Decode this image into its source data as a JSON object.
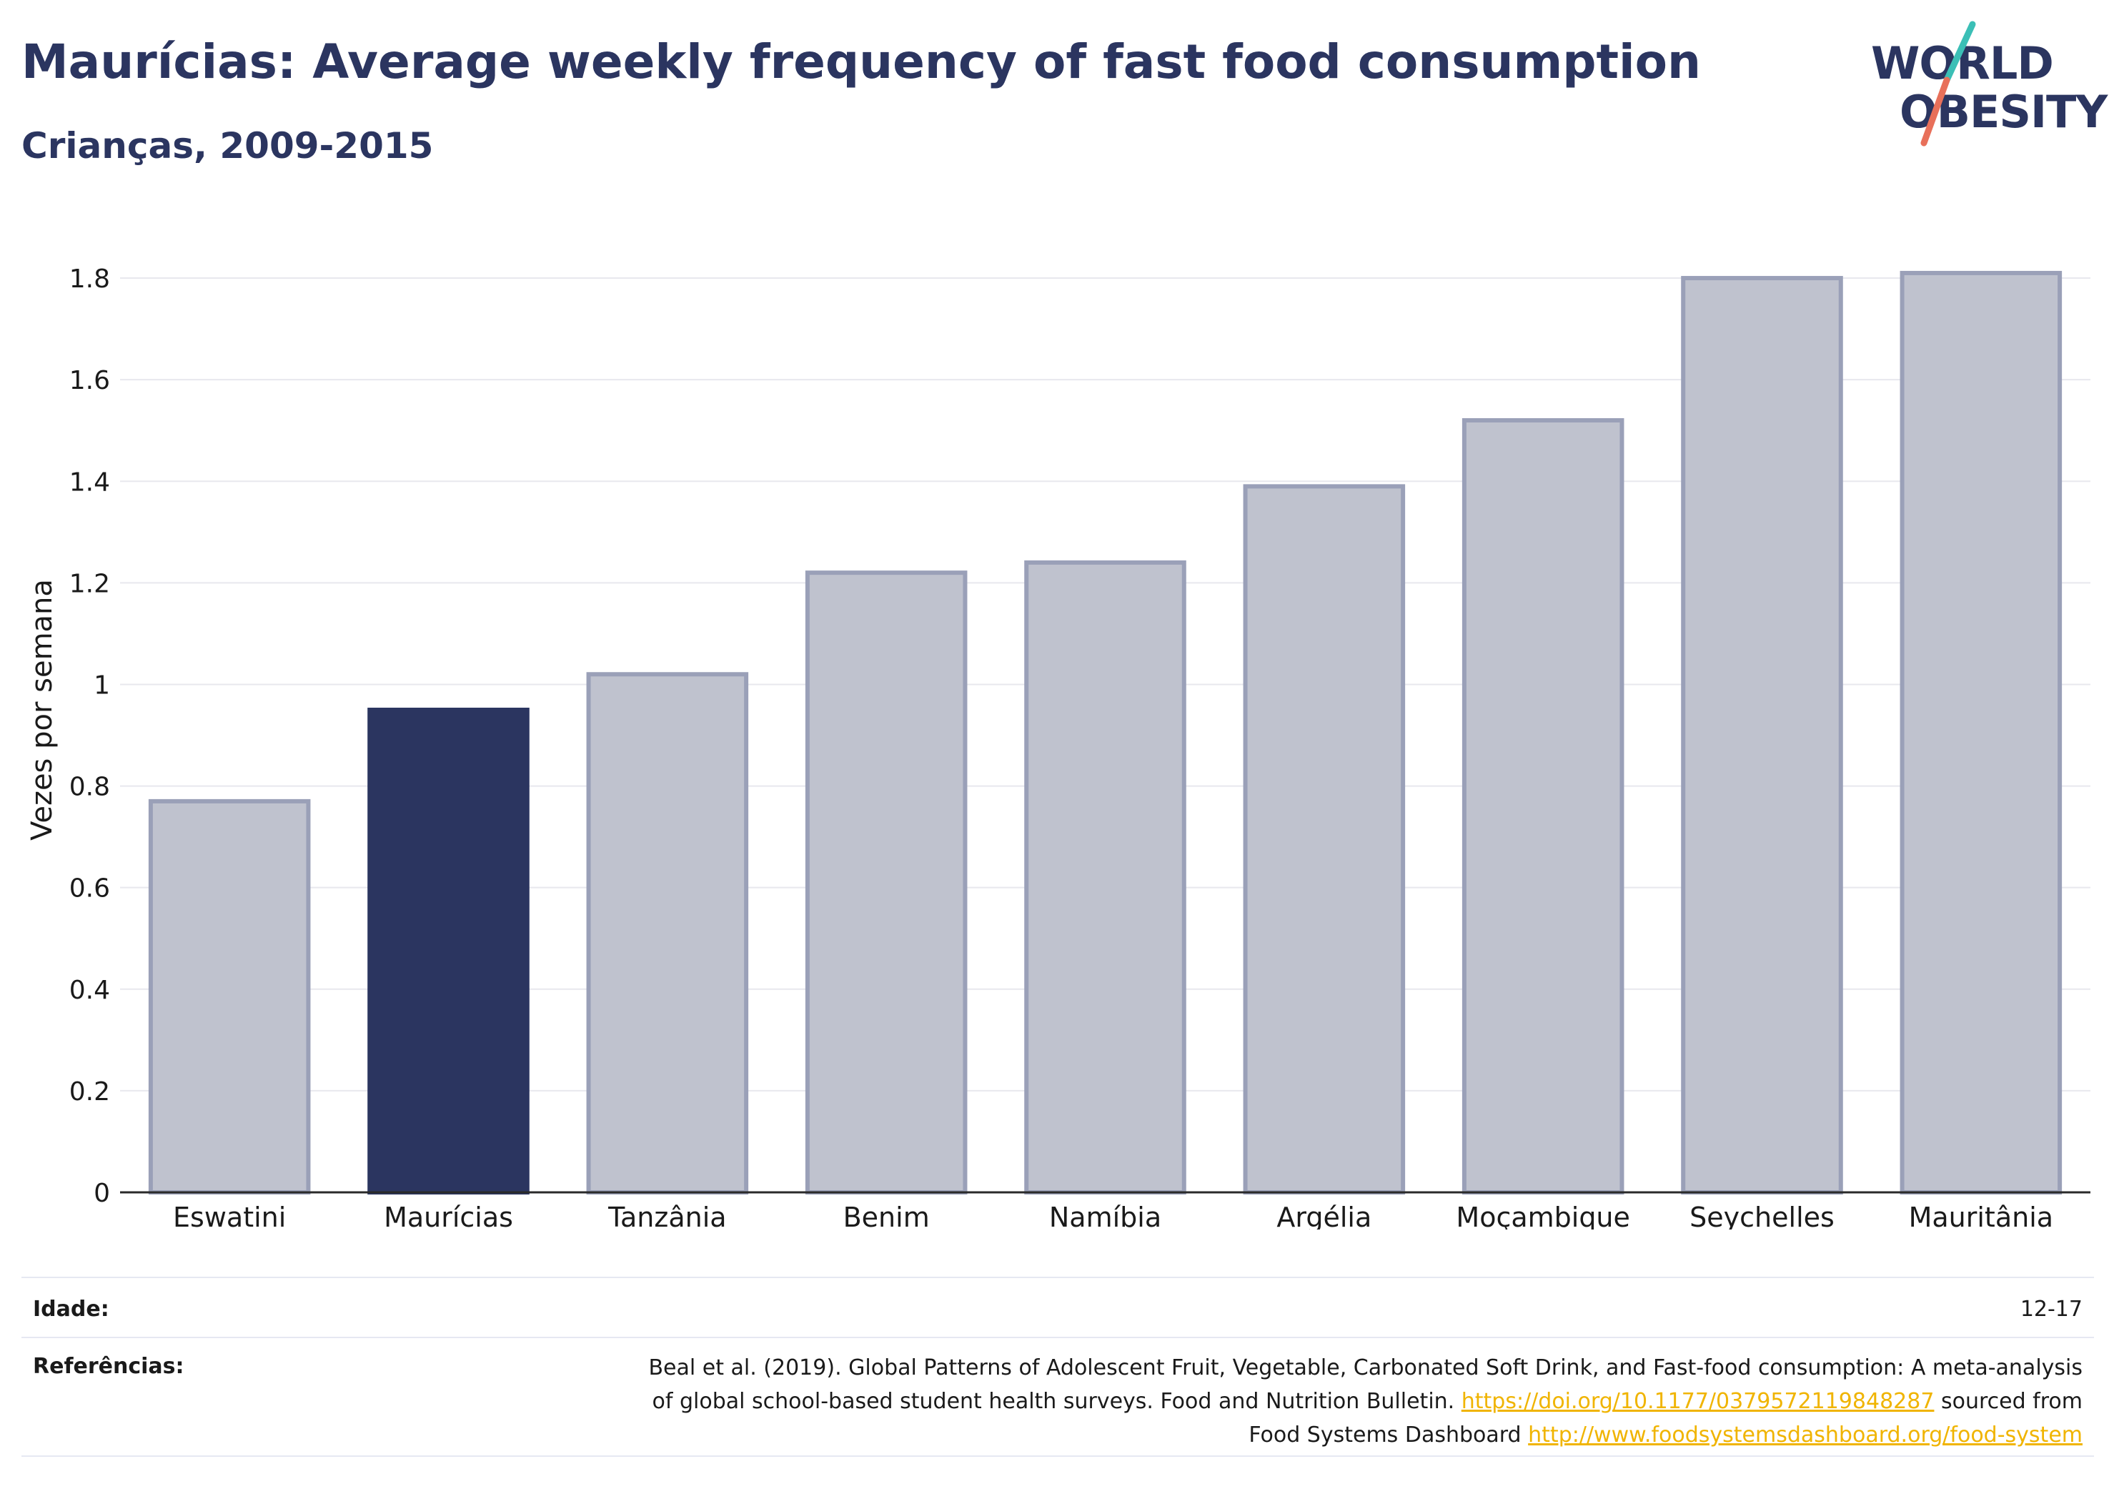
{
  "header": {
    "title": "Maurícias: Average weekly frequency of fast food consumption",
    "subtitle": "Crianças, 2009-2015"
  },
  "logo": {
    "line1": "WORLD",
    "line2": "OBESITY"
  },
  "colors": {
    "highlight": "#2b3560",
    "bar_fill": "#bfc2ce",
    "bar_stroke": "#9aa0b8",
    "accent_teal": "#3bbfb6",
    "accent_coral": "#e8705a",
    "link": "#f0b400"
  },
  "chart_data": {
    "type": "bar",
    "categories": [
      "Eswatini",
      "Maurícias",
      "Tanzânia",
      "Benim",
      "Namíbia",
      "Argélia",
      "Moçambique",
      "Seychelles",
      "Mauritânia"
    ],
    "values": [
      0.77,
      0.95,
      1.02,
      1.22,
      1.24,
      1.39,
      1.52,
      1.8,
      1.81
    ],
    "highlight_category": "Maurícias",
    "ylabel": "Vezes por semana",
    "xlabel": "",
    "ylim": [
      0,
      1.9
    ],
    "yticks": [
      0,
      0.2,
      0.4,
      0.6,
      0.8,
      1,
      1.2,
      1.4,
      1.6,
      1.8
    ],
    "ytick_labels": [
      "0",
      "0.2",
      "0.4",
      "0.6",
      "0.8",
      "1",
      "1.2",
      "1.4",
      "1.6",
      "1.8"
    ],
    "grid": true
  },
  "footer": {
    "age_label": "Idade:",
    "age_value": "12-17",
    "refs_label": "Referências:",
    "refs_line1": "Beal et al. (2019). Global Patterns of Adolescent Fruit, Vegetable, Carbonated Soft Drink, and Fast-food consumption: A meta-analysis",
    "refs_line2_text": "of global school-based student health surveys. Food and Nutrition Bulletin.",
    "refs_link1": "https://doi.org/10.1177/0379572119848287",
    "refs_line2_suffix": "sourced from",
    "refs_line3_text": "Food Systems Dashboard",
    "refs_link2": "http://www.foodsystemsdashboard.org/food-system"
  }
}
